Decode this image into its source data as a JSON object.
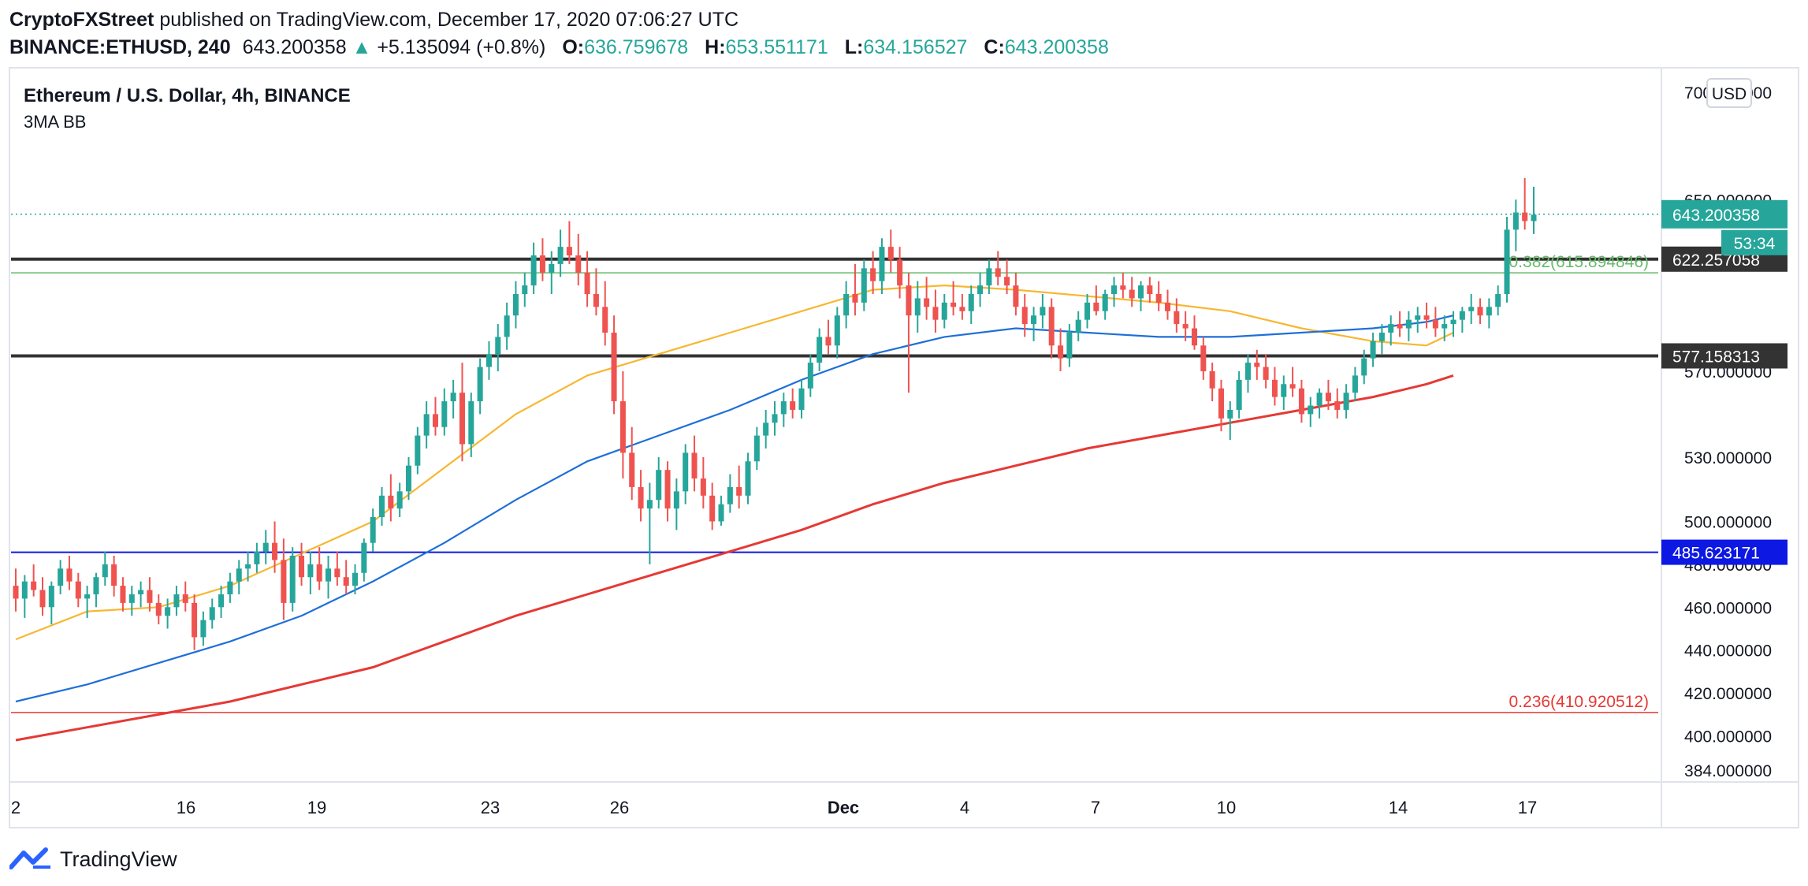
{
  "publisher": {
    "name": "CryptoFXStreet",
    "text": "published on TradingView.com, December 17, 2020 07:06:27 UTC"
  },
  "quote": {
    "symbol": "BINANCE:ETHUSD, 240",
    "last": "643.200358",
    "change": "+5.135094 (+0.8%)",
    "open_label": "O:",
    "open": "636.759678",
    "high_label": "H:",
    "high": "653.551171",
    "low_label": "L:",
    "low": "634.156527",
    "close_label": "C:",
    "close": "643.200358"
  },
  "chart_data": {
    "type": "candlestick",
    "title": "Ethereum / U.S. Dollar, 4h, BINANCE",
    "indicator": "3MA BB",
    "currency": "USD",
    "x_labels": [
      "2",
      "16",
      "19",
      "23",
      "26",
      "Dec",
      "4",
      "7",
      "10",
      "14",
      "17"
    ],
    "y_ticks": [
      "700.000000",
      "650.000000",
      "570.000000",
      "530.000000",
      "500.000000",
      "480.000000",
      "460.000000",
      "440.000000",
      "420.000000",
      "400.000000",
      "384.000000"
    ],
    "ylim": [
      380,
      710
    ],
    "candles_ohlc": [
      [
        470,
        478,
        458,
        464
      ],
      [
        464,
        475,
        455,
        472
      ],
      [
        472,
        480,
        465,
        468
      ],
      [
        468,
        474,
        456,
        460
      ],
      [
        460,
        472,
        452,
        470
      ],
      [
        470,
        482,
        466,
        478
      ],
      [
        478,
        484,
        468,
        472
      ],
      [
        472,
        476,
        460,
        464
      ],
      [
        464,
        470,
        455,
        466
      ],
      [
        466,
        476,
        460,
        474
      ],
      [
        474,
        486,
        470,
        480
      ],
      [
        480,
        484,
        465,
        470
      ],
      [
        470,
        474,
        458,
        462
      ],
      [
        462,
        470,
        456,
        466
      ],
      [
        466,
        472,
        460,
        468
      ],
      [
        468,
        474,
        458,
        462
      ],
      [
        462,
        466,
        452,
        456
      ],
      [
        456,
        464,
        450,
        460
      ],
      [
        460,
        470,
        456,
        466
      ],
      [
        466,
        472,
        458,
        462
      ],
      [
        462,
        466,
        440,
        446
      ],
      [
        446,
        458,
        442,
        454
      ],
      [
        454,
        464,
        450,
        460
      ],
      [
        460,
        470,
        455,
        466
      ],
      [
        466,
        476,
        462,
        472
      ],
      [
        472,
        482,
        466,
        478
      ],
      [
        478,
        486,
        472,
        480
      ],
      [
        480,
        490,
        476,
        486
      ],
      [
        486,
        496,
        480,
        490
      ],
      [
        490,
        500,
        476,
        482
      ],
      [
        482,
        492,
        454,
        462
      ],
      [
        462,
        488,
        458,
        484
      ],
      [
        484,
        490,
        470,
        474
      ],
      [
        474,
        486,
        466,
        480
      ],
      [
        480,
        488,
        468,
        472
      ],
      [
        472,
        484,
        464,
        478
      ],
      [
        478,
        486,
        470,
        474
      ],
      [
        474,
        482,
        466,
        470
      ],
      [
        470,
        480,
        466,
        476
      ],
      [
        476,
        492,
        472,
        490
      ],
      [
        490,
        506,
        486,
        502
      ],
      [
        502,
        516,
        498,
        512
      ],
      [
        512,
        522,
        500,
        506
      ],
      [
        506,
        518,
        502,
        514
      ],
      [
        514,
        530,
        510,
        526
      ],
      [
        526,
        544,
        522,
        540
      ],
      [
        540,
        556,
        534,
        550
      ],
      [
        550,
        558,
        540,
        544
      ],
      [
        544,
        562,
        540,
        556
      ],
      [
        556,
        566,
        548,
        560
      ],
      [
        560,
        574,
        528,
        536
      ],
      [
        536,
        560,
        530,
        556
      ],
      [
        556,
        576,
        550,
        572
      ],
      [
        572,
        584,
        566,
        578
      ],
      [
        578,
        592,
        570,
        586
      ],
      [
        586,
        602,
        580,
        596
      ],
      [
        596,
        612,
        590,
        606
      ],
      [
        606,
        616,
        600,
        610
      ],
      [
        610,
        630,
        606,
        624
      ],
      [
        624,
        632,
        612,
        616
      ],
      [
        616,
        626,
        606,
        620
      ],
      [
        620,
        636,
        614,
        628
      ],
      [
        628,
        640,
        620,
        624
      ],
      [
        624,
        634,
        610,
        616
      ],
      [
        616,
        626,
        600,
        606
      ],
      [
        606,
        618,
        596,
        600
      ],
      [
        600,
        612,
        582,
        588
      ],
      [
        588,
        596,
        550,
        556
      ],
      [
        556,
        570,
        520,
        532
      ],
      [
        532,
        544,
        510,
        516
      ],
      [
        516,
        524,
        500,
        506
      ],
      [
        506,
        518,
        480,
        510
      ],
      [
        510,
        530,
        506,
        524
      ],
      [
        524,
        528,
        500,
        506
      ],
      [
        506,
        520,
        496,
        514
      ],
      [
        514,
        536,
        508,
        532
      ],
      [
        532,
        540,
        514,
        520
      ],
      [
        520,
        530,
        506,
        512
      ],
      [
        512,
        518,
        496,
        500
      ],
      [
        500,
        512,
        498,
        508
      ],
      [
        508,
        522,
        504,
        516
      ],
      [
        516,
        526,
        506,
        512
      ],
      [
        512,
        532,
        508,
        528
      ],
      [
        528,
        544,
        524,
        540
      ],
      [
        540,
        552,
        534,
        546
      ],
      [
        546,
        556,
        540,
        550
      ],
      [
        550,
        560,
        544,
        556
      ],
      [
        556,
        562,
        548,
        552
      ],
      [
        552,
        566,
        548,
        562
      ],
      [
        562,
        578,
        558,
        574
      ],
      [
        574,
        590,
        570,
        586
      ],
      [
        586,
        594,
        578,
        582
      ],
      [
        582,
        600,
        576,
        596
      ],
      [
        596,
        612,
        590,
        606
      ],
      [
        606,
        620,
        596,
        602
      ],
      [
        602,
        622,
        598,
        618
      ],
      [
        618,
        626,
        606,
        612
      ],
      [
        612,
        632,
        606,
        628
      ],
      [
        628,
        636,
        616,
        622
      ],
      [
        622,
        628,
        604,
        610
      ],
      [
        610,
        616,
        560,
        596
      ],
      [
        596,
        612,
        588,
        604
      ],
      [
        604,
        614,
        594,
        600
      ],
      [
        600,
        608,
        588,
        594
      ],
      [
        594,
        606,
        590,
        602
      ],
      [
        602,
        612,
        596,
        600
      ],
      [
        600,
        606,
        594,
        598
      ],
      [
        598,
        610,
        592,
        606
      ],
      [
        606,
        616,
        600,
        610
      ],
      [
        610,
        622,
        606,
        618
      ],
      [
        618,
        626,
        610,
        614
      ],
      [
        614,
        622,
        606,
        610
      ],
      [
        610,
        616,
        596,
        600
      ],
      [
        600,
        606,
        586,
        592
      ],
      [
        592,
        600,
        584,
        596
      ],
      [
        596,
        606,
        590,
        600
      ],
      [
        600,
        604,
        576,
        582
      ],
      [
        582,
        590,
        570,
        576
      ],
      [
        576,
        592,
        572,
        588
      ],
      [
        588,
        598,
        584,
        594
      ],
      [
        594,
        606,
        590,
        602
      ],
      [
        602,
        610,
        596,
        598
      ],
      [
        598,
        608,
        594,
        606
      ],
      [
        606,
        614,
        600,
        610
      ],
      [
        610,
        616,
        604,
        608
      ],
      [
        608,
        614,
        600,
        604
      ],
      [
        604,
        612,
        598,
        610
      ],
      [
        610,
        614,
        602,
        606
      ],
      [
        606,
        612,
        598,
        602
      ],
      [
        602,
        608,
        594,
        598
      ],
      [
        598,
        604,
        588,
        592
      ],
      [
        592,
        598,
        584,
        590
      ],
      [
        590,
        596,
        580,
        582
      ],
      [
        582,
        586,
        566,
        570
      ],
      [
        570,
        574,
        556,
        562
      ],
      [
        562,
        566,
        542,
        548
      ],
      [
        548,
        556,
        538,
        552
      ],
      [
        552,
        570,
        548,
        566
      ],
      [
        566,
        578,
        560,
        574
      ],
      [
        574,
        580,
        566,
        572
      ],
      [
        572,
        578,
        562,
        566
      ],
      [
        566,
        572,
        554,
        558
      ],
      [
        558,
        568,
        552,
        564
      ],
      [
        564,
        572,
        558,
        562
      ],
      [
        562,
        566,
        546,
        550
      ],
      [
        550,
        558,
        544,
        554
      ],
      [
        554,
        562,
        548,
        560
      ],
      [
        560,
        566,
        552,
        556
      ],
      [
        556,
        562,
        548,
        552
      ],
      [
        552,
        564,
        548,
        560
      ],
      [
        560,
        572,
        556,
        568
      ],
      [
        568,
        580,
        564,
        576
      ],
      [
        576,
        588,
        572,
        584
      ],
      [
        584,
        592,
        578,
        588
      ],
      [
        588,
        596,
        582,
        592
      ],
      [
        592,
        598,
        586,
        590
      ],
      [
        590,
        598,
        584,
        594
      ],
      [
        594,
        600,
        588,
        596
      ],
      [
        596,
        602,
        590,
        594
      ],
      [
        594,
        600,
        586,
        590
      ],
      [
        590,
        596,
        584,
        592
      ],
      [
        592,
        598,
        586,
        594
      ],
      [
        594,
        600,
        588,
        598
      ],
      [
        598,
        606,
        592,
        600
      ],
      [
        600,
        604,
        592,
        596
      ],
      [
        596,
        604,
        590,
        600
      ],
      [
        600,
        610,
        596,
        606
      ],
      [
        606,
        642,
        602,
        636
      ],
      [
        636,
        650,
        626,
        644
      ],
      [
        644,
        660,
        636,
        640
      ],
      [
        640,
        656,
        634,
        643
      ]
    ],
    "series": [
      {
        "name": "",
        "color": "#f7b731",
        "values": [
          [
            0,
            445
          ],
          [
            8,
            458
          ],
          [
            16,
            460
          ],
          [
            24,
            470
          ],
          [
            32,
            485
          ],
          [
            40,
            500
          ],
          [
            48,
            525
          ],
          [
            56,
            550
          ],
          [
            64,
            568
          ],
          [
            72,
            578
          ],
          [
            80,
            588
          ],
          [
            88,
            598
          ],
          [
            96,
            608
          ],
          [
            104,
            610
          ],
          [
            112,
            608
          ],
          [
            120,
            605
          ],
          [
            128,
            602
          ],
          [
            136,
            598
          ],
          [
            144,
            590
          ],
          [
            152,
            584
          ],
          [
            158,
            582
          ],
          [
            161,
            588
          ]
        ]
      },
      {
        "name": "",
        "color": "#1e6fd8",
        "values": [
          [
            0,
            416
          ],
          [
            8,
            424
          ],
          [
            16,
            434
          ],
          [
            24,
            444
          ],
          [
            32,
            456
          ],
          [
            40,
            472
          ],
          [
            48,
            490
          ],
          [
            56,
            510
          ],
          [
            64,
            528
          ],
          [
            72,
            540
          ],
          [
            80,
            552
          ],
          [
            88,
            566
          ],
          [
            96,
            578
          ],
          [
            104,
            586
          ],
          [
            112,
            590
          ],
          [
            120,
            588
          ],
          [
            128,
            586
          ],
          [
            136,
            586
          ],
          [
            144,
            588
          ],
          [
            152,
            590
          ],
          [
            158,
            593
          ],
          [
            161,
            596
          ]
        ]
      },
      {
        "name": "",
        "color": "#e53935",
        "values": [
          [
            0,
            398
          ],
          [
            8,
            404
          ],
          [
            16,
            410
          ],
          [
            24,
            416
          ],
          [
            32,
            424
          ],
          [
            40,
            432
          ],
          [
            48,
            444
          ],
          [
            56,
            456
          ],
          [
            64,
            466
          ],
          [
            72,
            476
          ],
          [
            80,
            486
          ],
          [
            88,
            496
          ],
          [
            96,
            508
          ],
          [
            104,
            518
          ],
          [
            112,
            526
          ],
          [
            120,
            534
          ],
          [
            128,
            540
          ],
          [
            136,
            546
          ],
          [
            144,
            552
          ],
          [
            152,
            558
          ],
          [
            158,
            564
          ],
          [
            161,
            568
          ]
        ]
      }
    ],
    "horizontal_lines": [
      {
        "name": "resistance",
        "value": 622.257058,
        "label": "622.257058",
        "color": "#333333"
      },
      {
        "name": "support",
        "value": 577.158313,
        "label": "577.158313",
        "color": "#333333"
      },
      {
        "name": "support-blue",
        "value": 485.623171,
        "label": "485.623171",
        "color": "#0d18e3"
      },
      {
        "name": "fib-0382",
        "value": 615.894846,
        "label": "0.382(615.894846)",
        "color": "#66bb6a"
      },
      {
        "name": "fib-0236",
        "value": 410.920512,
        "label": "0.236(410.920512)",
        "color": "#e53935"
      }
    ],
    "last_price": {
      "value": 643.200358,
      "label": "643.200358",
      "countdown": "53:34"
    },
    "grid": false,
    "legend": "none"
  },
  "footer": {
    "brand": "TradingView"
  },
  "colors": {
    "up": "#26a69a",
    "down": "#ef5350",
    "text": "#131722",
    "border": "#e0e3eb"
  }
}
